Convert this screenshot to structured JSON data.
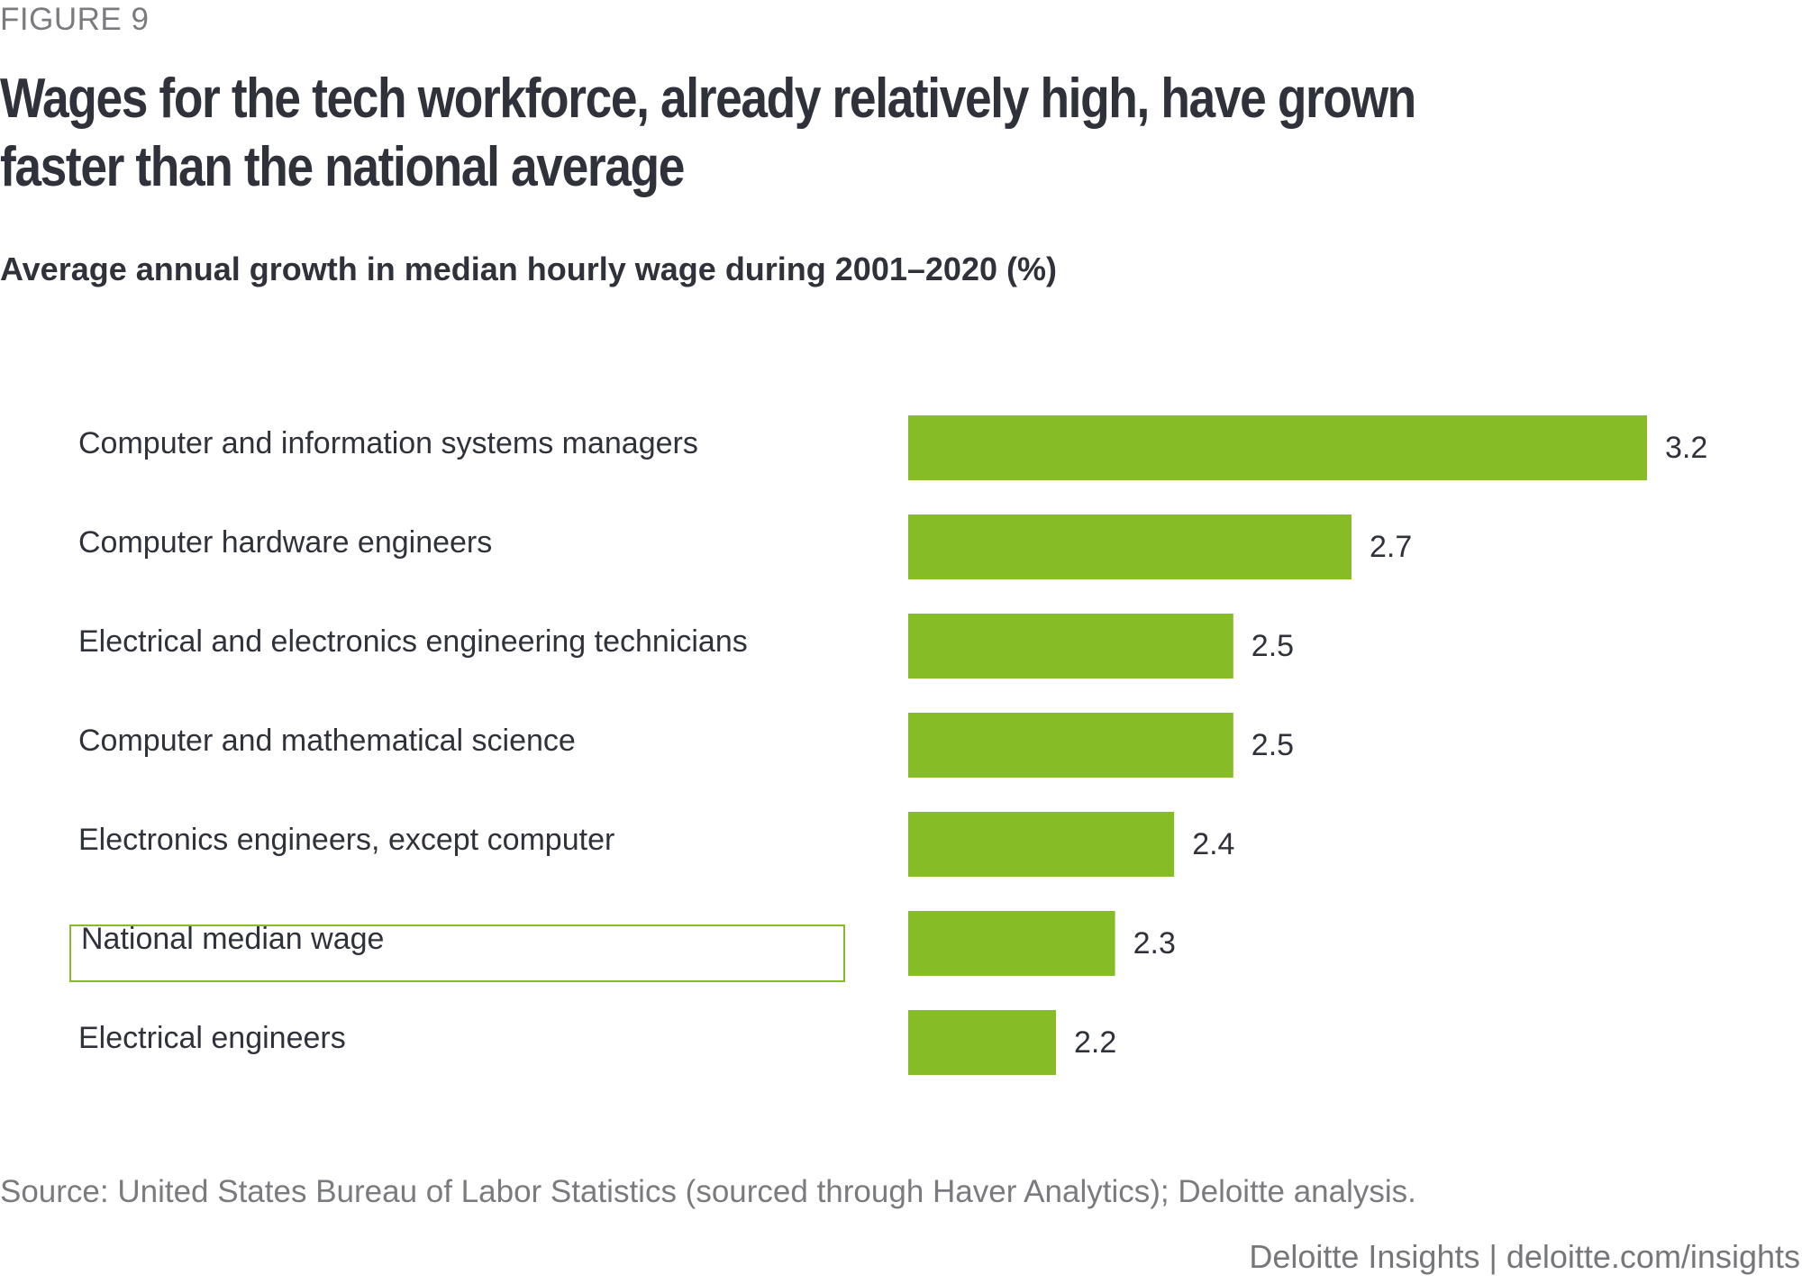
{
  "figure_label": "FIGURE 9",
  "title": "Wages for the tech workforce, already relatively high, have grown faster than the national average",
  "subtitle": "Average annual growth in median hourly wage during 2001–2020 (%)",
  "source": "Source: United States Bureau of Labor Statistics (sourced through Haver Analytics); Deloitte analysis.",
  "credit": "Deloitte Insights | deloitte.com/insights",
  "colors": {
    "bar": "#86bc25",
    "highlight_border": "#86bc25",
    "text": "#2f323a"
  },
  "chart_data": {
    "type": "bar",
    "orientation": "horizontal",
    "title": "Average annual growth in median hourly wage during 2001–2020 (%)",
    "xlabel": "",
    "ylabel": "",
    "xlim": [
      1.95,
      3.2
    ],
    "grid": false,
    "categories": [
      "Computer and information systems managers",
      "Computer hardware engineers",
      "Electrical and electronics engineering technicians",
      "Computer and mathematical science",
      "Electronics engineers, except computer",
      "National median wage",
      "Electrical engineers"
    ],
    "values": [
      3.2,
      2.7,
      2.5,
      2.5,
      2.4,
      2.3,
      2.2
    ],
    "value_labels": [
      "3.2",
      "2.7",
      "2.5",
      "2.5",
      "2.4",
      "2.3",
      "2.2"
    ],
    "highlighted_category": "National median wage"
  }
}
